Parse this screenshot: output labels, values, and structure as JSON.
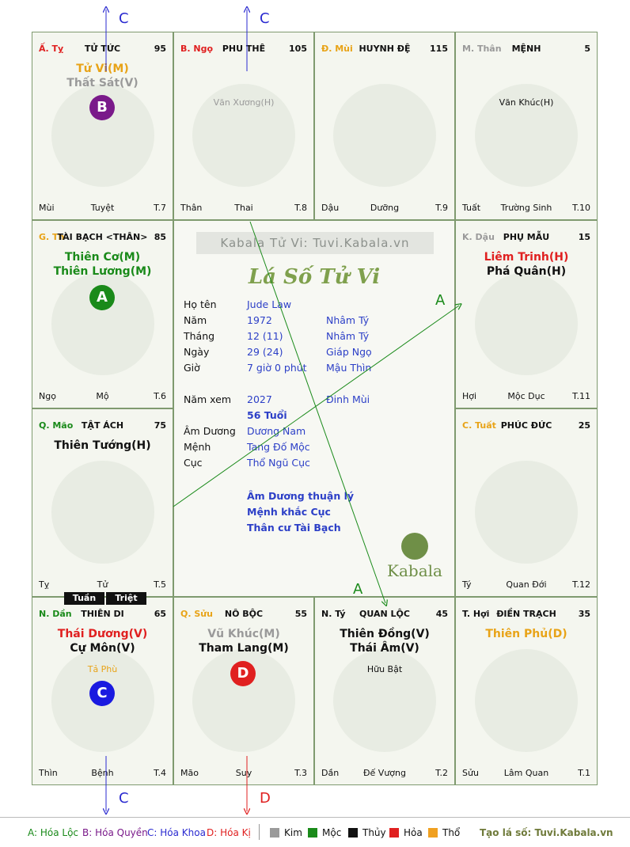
{
  "cells": {
    "ty": {
      "can": "Ấ. Tỵ",
      "can_color": "#e02020",
      "name": "TỬ TỨC",
      "age": "95",
      "stars": [
        {
          "t": "Tử Vi(M)",
          "c": "#e8a317"
        },
        {
          "t": "Thất Sát(V)",
          "c": "#9a9a9a"
        }
      ],
      "minors": [],
      "foot_l": "Mùi",
      "foot_m": "Tuyệt",
      "foot_r": "T.7"
    },
    "ngo": {
      "can": "B. Ngọ",
      "can_color": "#e02020",
      "name": "PHU THÊ",
      "age": "105",
      "stars": [],
      "minors": [
        {
          "t": "Văn Xương(H)",
          "c": "#9a9a9a"
        }
      ],
      "foot_l": "Thân",
      "foot_m": "Thai",
      "foot_r": "T.8"
    },
    "mui": {
      "can": "Đ. Mùi",
      "can_color": "#e8a317",
      "name": "HUYNH ĐỆ",
      "age": "115",
      "stars": [],
      "minors": [],
      "foot_l": "Dậu",
      "foot_m": "Dưỡng",
      "foot_r": "T.9"
    },
    "than": {
      "can": "M. Thân",
      "can_color": "#9a9a9a",
      "name": "MỆNH",
      "age": "5",
      "stars": [],
      "minors": [
        {
          "t": "Văn Khúc(H)",
          "c": "#111111"
        }
      ],
      "foot_l": "Tuất",
      "foot_m": "Trường Sinh",
      "foot_r": "T.10"
    },
    "thin": {
      "can": "G. Th",
      "can_color": "#e8a317",
      "name": "TÀI BẠCH <THÂN>",
      "age": "85",
      "stars": [
        {
          "t": "Thiên Cơ(M)",
          "c": "#1a8a1a"
        },
        {
          "t": "Thiên Lương(M)",
          "c": "#1a8a1a"
        }
      ],
      "minors": [],
      "foot_l": "Ngọ",
      "foot_m": "Mộ",
      "foot_r": "T.6"
    },
    "dau": {
      "can": "K. Dậu",
      "can_color": "#9a9a9a",
      "name": "PHỤ MẪU",
      "age": "15",
      "stars": [
        {
          "t": "Liêm Trinh(H)",
          "c": "#e02020"
        },
        {
          "t": "Phá Quân(H)",
          "c": "#111111"
        }
      ],
      "minors": [],
      "foot_l": "Hợi",
      "foot_m": "Mộc Dục",
      "foot_r": "T.11"
    },
    "mao": {
      "can": "Q. Mão",
      "can_color": "#1a8a1a",
      "name": "TẬT ÁCH",
      "age": "75",
      "stars": [
        {
          "t": "Thiên Tướng(H)",
          "c": "#111111"
        }
      ],
      "minors": [],
      "foot_l": "Tỵ",
      "foot_m": "Tử",
      "foot_r": "T.5"
    },
    "tuat": {
      "can": "C. Tuất",
      "can_color": "#e8a317",
      "name": "PHÚC ĐỨC",
      "age": "25",
      "stars": [],
      "minors": [],
      "foot_l": "Tý",
      "foot_m": "Quan Đới",
      "foot_r": "T.12"
    },
    "dan": {
      "can": "N. Dần",
      "can_color": "#1a8a1a",
      "name": "THIÊN DI",
      "age": "65",
      "stars": [
        {
          "t": "Thái Dương(V)",
          "c": "#e02020"
        },
        {
          "t": "Cự Môn(V)",
          "c": "#111111"
        }
      ],
      "minors": [
        {
          "t": "Tả Phù",
          "c": "#e8a317"
        }
      ],
      "foot_l": "Thìn",
      "foot_m": "Bệnh",
      "foot_r": "T.4"
    },
    "suu": {
      "can": "Q. Sửu",
      "can_color": "#e8a317",
      "name": "NÔ BỘC",
      "age": "55",
      "stars": [
        {
          "t": "Vũ Khúc(M)",
          "c": "#9a9a9a"
        },
        {
          "t": "Tham Lang(M)",
          "c": "#111111"
        }
      ],
      "minors": [],
      "foot_l": "Mão",
      "foot_m": "Suy",
      "foot_r": "T.3"
    },
    "tys": {
      "can": "N. Tý",
      "can_color": "#111111",
      "name": "QUAN LỘC",
      "age": "45",
      "stars": [
        {
          "t": "Thiên Đồng(V)",
          "c": "#111111"
        },
        {
          "t": "Thái Âm(V)",
          "c": "#111111"
        }
      ],
      "minors": [
        {
          "t": "Hữu Bật",
          "c": "#111111"
        }
      ],
      "foot_l": "Dần",
      "foot_m": "Đế Vượng",
      "foot_r": "T.2"
    },
    "hoi": {
      "can": "T. Hợi",
      "can_color": "#111111",
      "name": "ĐIỀN TRẠCH",
      "age": "35",
      "stars": [
        {
          "t": "Thiên Phủ(D)",
          "c": "#e8a317"
        }
      ],
      "minors": [],
      "foot_l": "Sửu",
      "foot_m": "Lâm Quan",
      "foot_r": "T.1"
    }
  },
  "badges": {
    "b": "B",
    "a": "A",
    "c": "C",
    "d": "D"
  },
  "center": {
    "watermark": "Kabala Tử Vi: Tuvi.Kabala.vn",
    "title": "Lá Số Tử Vi",
    "rows": [
      {
        "k": "Họ tên",
        "v1": "Jude Law",
        "v2": ""
      },
      {
        "k": "Năm",
        "v1": "1972",
        "v2": "Nhâm Tý"
      },
      {
        "k": "Tháng",
        "v1": "12  (11)",
        "v2": "Nhâm Tý"
      },
      {
        "k": "Ngày",
        "v1": "29  (24)",
        "v2": "Giáp Ngọ"
      },
      {
        "k": "Giờ",
        "v1": "7 giờ 0 phút",
        "v2": "Mậu Thìn"
      },
      {
        "k": "Năm xem",
        "v1": "2027",
        "v2": "Đinh Mùi"
      },
      {
        "k": "",
        "v1": "56 Tuổi",
        "v2": ""
      },
      {
        "k": "Âm Dương",
        "v1": "Dương Nam",
        "v2": ""
      },
      {
        "k": "Mệnh",
        "v1": "Tang Đố Mộc",
        "v2": ""
      },
      {
        "k": "Cục",
        "v1": "Thổ Ngũ Cục",
        "v2": ""
      }
    ],
    "notes": [
      "Âm Dương thuận lý",
      "Mệnh khắc Cục",
      "Thân cư Tài Bạch"
    ],
    "brand": "Kabala"
  },
  "tuan": "Tuần",
  "triet": "Triệt",
  "arrows": {
    "c_top1": "C",
    "c_top2": "C",
    "a_right": "A",
    "a_bottom": "A",
    "c_bottom": "C",
    "d_bottom": "D"
  },
  "legend": {
    "a": "A: Hóa Lộc",
    "b": "B: Hóa Quyền",
    "c": "C: Hóa Khoa",
    "d": "D: Hóa Kị",
    "kim": "Kim",
    "moc": "Mộc",
    "thuy": "Thủy",
    "hoa": "Hỏa",
    "tho": "Thổ",
    "site": "Tạo lá số: Tuvi.Kabala.vn",
    "colors": {
      "kim": "#9a9a9a",
      "moc": "#1a8a1a",
      "thuy": "#111111",
      "hoa": "#e02020",
      "tho": "#f0a020"
    }
  }
}
